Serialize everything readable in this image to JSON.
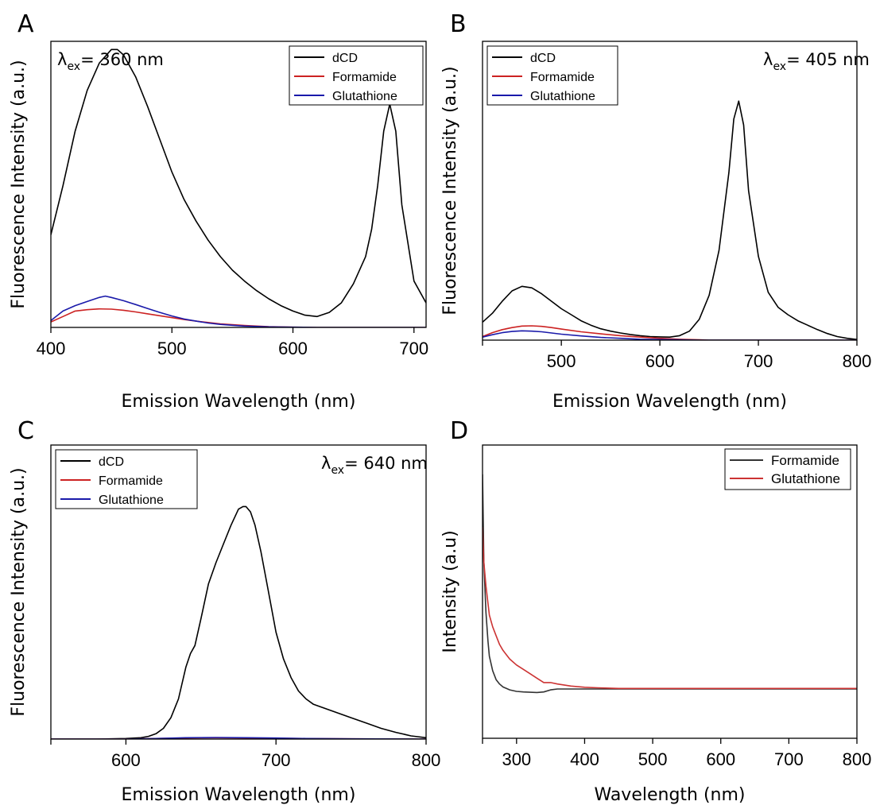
{
  "chart_data": [
    {
      "panel_label": "A",
      "type": "line",
      "xlabel": "Emission Wavelength (nm)",
      "ylabel": "Fluorescence Intensity (a.u.)",
      "xlim": [
        400,
        710
      ],
      "ylim": [
        0,
        1.05
      ],
      "xticks": [
        400,
        500,
        600,
        700
      ],
      "y_tick_labels": false,
      "grid": false,
      "legend_position": "top-right",
      "annotation": {
        "symbol": "λ",
        "sub": "ex",
        "text": "= 360 nm",
        "position": "top-left"
      },
      "series": [
        {
          "name": "dCD",
          "color": "#000000",
          "x": [
            400,
            410,
            420,
            430,
            440,
            450,
            455,
            460,
            470,
            480,
            490,
            500,
            510,
            520,
            530,
            540,
            550,
            560,
            570,
            580,
            590,
            600,
            610,
            620,
            630,
            640,
            650,
            660,
            665,
            670,
            675,
            680,
            685,
            690,
            700,
            710
          ],
          "y": [
            0.34,
            0.52,
            0.72,
            0.87,
            0.97,
            1.02,
            1.02,
            1.0,
            0.92,
            0.81,
            0.69,
            0.57,
            0.47,
            0.39,
            0.32,
            0.26,
            0.21,
            0.17,
            0.135,
            0.105,
            0.08,
            0.06,
            0.045,
            0.04,
            0.055,
            0.09,
            0.16,
            0.26,
            0.36,
            0.52,
            0.72,
            0.82,
            0.72,
            0.45,
            0.17,
            0.09
          ]
        },
        {
          "name": "Formamide",
          "color": "#cc2222",
          "x": [
            400,
            410,
            420,
            430,
            440,
            450,
            460,
            470,
            480,
            490,
            500,
            510,
            520,
            530,
            540,
            550,
            560,
            580,
            600,
            620,
            650,
            680,
            710
          ],
          "y": [
            0.02,
            0.04,
            0.06,
            0.065,
            0.068,
            0.067,
            0.063,
            0.057,
            0.05,
            0.043,
            0.036,
            0.029,
            0.023,
            0.018,
            0.013,
            0.01,
            0.007,
            0.003,
            0.001,
            0.0,
            0.0,
            0.0,
            0.0
          ]
        },
        {
          "name": "Glutathione",
          "color": "#1a1aaa",
          "x": [
            400,
            410,
            420,
            430,
            440,
            445,
            450,
            460,
            470,
            480,
            490,
            500,
            510,
            520,
            530,
            540,
            550,
            560,
            580,
            600,
            620,
            650,
            680,
            710
          ],
          "y": [
            0.025,
            0.06,
            0.08,
            0.095,
            0.11,
            0.115,
            0.11,
            0.098,
            0.084,
            0.069,
            0.055,
            0.042,
            0.031,
            0.023,
            0.016,
            0.011,
            0.008,
            0.005,
            0.002,
            0.001,
            0.0,
            0.0,
            0.0,
            0.0
          ]
        }
      ]
    },
    {
      "panel_label": "B",
      "type": "line",
      "xlabel": "Emission Wavelength (nm)",
      "ylabel": "Fluorescence Intensity (a.u.)",
      "xlim": [
        420,
        800
      ],
      "ylim": [
        0,
        1.0
      ],
      "xticks": [
        500,
        600,
        700,
        800
      ],
      "y_tick_labels": false,
      "grid": false,
      "legend_position": "top-left",
      "annotation": {
        "symbol": "λ",
        "sub": "ex",
        "text": "= 405 nm",
        "position": "top-right"
      },
      "series": [
        {
          "name": "dCD",
          "color": "#000000",
          "x": [
            420,
            430,
            440,
            450,
            460,
            470,
            480,
            490,
            500,
            510,
            520,
            530,
            540,
            550,
            560,
            570,
            580,
            590,
            600,
            610,
            620,
            630,
            640,
            650,
            660,
            670,
            675,
            680,
            685,
            690,
            700,
            710,
            720,
            730,
            740,
            750,
            760,
            770,
            780,
            790,
            800
          ],
          "y": [
            0.06,
            0.09,
            0.13,
            0.165,
            0.18,
            0.175,
            0.155,
            0.13,
            0.105,
            0.085,
            0.065,
            0.05,
            0.038,
            0.03,
            0.024,
            0.019,
            0.015,
            0.012,
            0.011,
            0.01,
            0.015,
            0.03,
            0.07,
            0.15,
            0.3,
            0.56,
            0.74,
            0.8,
            0.72,
            0.5,
            0.28,
            0.16,
            0.11,
            0.085,
            0.065,
            0.05,
            0.035,
            0.022,
            0.012,
            0.006,
            0.002
          ]
        },
        {
          "name": "Formamide",
          "color": "#cc2222",
          "x": [
            420,
            430,
            440,
            450,
            460,
            470,
            480,
            490,
            500,
            520,
            540,
            560,
            580,
            600,
            620,
            640,
            650,
            700,
            750,
            800
          ],
          "y": [
            0.012,
            0.025,
            0.035,
            0.042,
            0.047,
            0.048,
            0.046,
            0.042,
            0.037,
            0.028,
            0.021,
            0.015,
            0.01,
            0.006,
            0.003,
            0.001,
            0.0,
            0.0,
            0.0,
            0.0
          ]
        },
        {
          "name": "Glutathione",
          "color": "#1a1aaa",
          "x": [
            420,
            430,
            440,
            450,
            460,
            470,
            480,
            490,
            500,
            520,
            540,
            560,
            580,
            600,
            620,
            640,
            700,
            750,
            800
          ],
          "y": [
            0.01,
            0.018,
            0.025,
            0.029,
            0.031,
            0.03,
            0.028,
            0.024,
            0.02,
            0.014,
            0.009,
            0.006,
            0.003,
            0.002,
            0.001,
            0.0,
            0.0,
            0.0,
            0.0
          ]
        }
      ]
    },
    {
      "panel_label": "C",
      "type": "line",
      "xlabel": "Emission Wavelength (nm)",
      "ylabel": "Fluorescence Intensity (a.u.)",
      "xlim": [
        550,
        800
      ],
      "ylim": [
        0,
        1.1
      ],
      "xticks": [
        600,
        700,
        800
      ],
      "y_tick_labels": false,
      "grid": false,
      "legend_position": "top-left",
      "annotation": {
        "symbol": "λ",
        "sub": "ex",
        "text": "= 640 nm",
        "position": "top-right"
      },
      "series": [
        {
          "name": "dCD",
          "color": "#000000",
          "x": [
            550,
            580,
            600,
            610,
            615,
            620,
            625,
            630,
            635,
            640,
            643,
            646,
            650,
            655,
            660,
            665,
            670,
            675,
            678,
            680,
            683,
            686,
            690,
            695,
            700,
            705,
            710,
            715,
            720,
            725,
            730,
            740,
            750,
            760,
            770,
            780,
            790,
            800
          ],
          "y": [
            0.0,
            0.0,
            0.002,
            0.005,
            0.01,
            0.02,
            0.04,
            0.08,
            0.15,
            0.27,
            0.32,
            0.35,
            0.45,
            0.58,
            0.66,
            0.73,
            0.8,
            0.86,
            0.87,
            0.87,
            0.85,
            0.8,
            0.7,
            0.55,
            0.4,
            0.3,
            0.23,
            0.18,
            0.15,
            0.13,
            0.12,
            0.1,
            0.08,
            0.06,
            0.04,
            0.025,
            0.012,
            0.005
          ]
        },
        {
          "name": "Formamide",
          "color": "#cc2222",
          "x": [
            550,
            600,
            620,
            640,
            660,
            680,
            700,
            720,
            750,
            800
          ],
          "y": [
            0.0,
            0.0,
            0.002,
            0.004,
            0.005,
            0.004,
            0.003,
            0.002,
            0.001,
            0.0
          ]
        },
        {
          "name": "Glutathione",
          "color": "#1a1aaa",
          "x": [
            550,
            600,
            620,
            640,
            660,
            680,
            700,
            720,
            750,
            800
          ],
          "y": [
            0.0,
            0.0,
            0.002,
            0.005,
            0.006,
            0.005,
            0.004,
            0.002,
            0.001,
            0.0
          ]
        }
      ]
    },
    {
      "panel_label": "D",
      "type": "line",
      "xlabel": "Wavelength (nm)",
      "ylabel": "Intensity (a.u)",
      "xlim": [
        250,
        800
      ],
      "ylim": [
        0,
        1.0
      ],
      "xticks": [
        300,
        400,
        500,
        600,
        700,
        800
      ],
      "y_tick_labels": false,
      "grid": false,
      "legend_position": "top-right",
      "series": [
        {
          "name": "Formamide",
          "color": "#333333",
          "x": [
            250,
            252,
            255,
            258,
            260,
            265,
            270,
            275,
            280,
            290,
            300,
            310,
            320,
            330,
            340,
            350,
            360,
            380,
            400,
            450,
            500,
            550,
            600,
            650,
            700,
            750,
            800
          ],
          "y": [
            0.9,
            0.6,
            0.43,
            0.33,
            0.28,
            0.23,
            0.2,
            0.185,
            0.175,
            0.165,
            0.16,
            0.158,
            0.157,
            0.156,
            0.158,
            0.165,
            0.168,
            0.168,
            0.168,
            0.168,
            0.168,
            0.168,
            0.168,
            0.168,
            0.168,
            0.168,
            0.168
          ]
        },
        {
          "name": "Glutathione",
          "color": "#cc3333",
          "x": [
            250,
            252,
            255,
            258,
            260,
            265,
            270,
            275,
            280,
            290,
            300,
            310,
            320,
            330,
            340,
            350,
            360,
            380,
            400,
            420,
            450,
            500,
            550,
            600,
            650,
            700,
            750,
            800
          ],
          "y": [
            0.72,
            0.6,
            0.52,
            0.46,
            0.42,
            0.38,
            0.35,
            0.32,
            0.3,
            0.27,
            0.25,
            0.235,
            0.22,
            0.205,
            0.19,
            0.19,
            0.185,
            0.178,
            0.174,
            0.172,
            0.17,
            0.17,
            0.17,
            0.17,
            0.17,
            0.17,
            0.17,
            0.17
          ]
        }
      ]
    }
  ]
}
